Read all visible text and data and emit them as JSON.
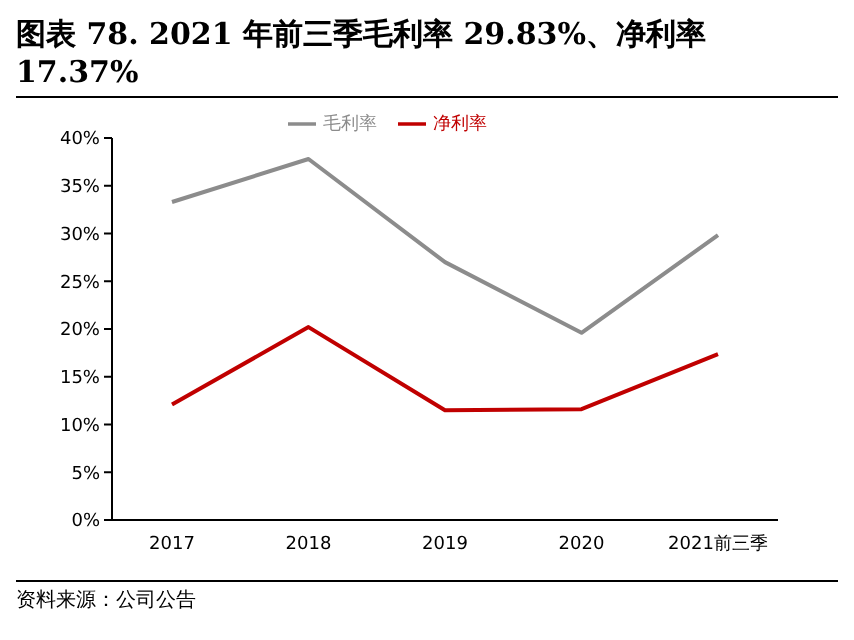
{
  "chart_data": {
    "type": "line",
    "title": "图表 78. 2021 年前三季毛利率 29.83%、净利率 17.37%",
    "categories": [
      "2017",
      "2018",
      "2019",
      "2020",
      "2021前三季"
    ],
    "series": [
      {
        "name": "毛利率",
        "color": "#8c8c8c",
        "values": [
          33.3,
          37.8,
          27.0,
          19.6,
          29.83
        ]
      },
      {
        "name": "净利率",
        "color": "#c00000",
        "values": [
          12.1,
          20.2,
          11.5,
          11.6,
          17.37
        ]
      }
    ],
    "ylim": [
      0,
      40
    ],
    "yticks": [
      {
        "value": 0,
        "label": "0%"
      },
      {
        "value": 5,
        "label": "5%"
      },
      {
        "value": 10,
        "label": "10%"
      },
      {
        "value": 15,
        "label": "15%"
      },
      {
        "value": 20,
        "label": "20%"
      },
      {
        "value": 25,
        "label": "25%"
      },
      {
        "value": 30,
        "label": "30%"
      },
      {
        "value": 35,
        "label": "35%"
      },
      {
        "value": 40,
        "label": "40%"
      }
    ],
    "grid": false,
    "legend": "top",
    "marker": "none",
    "line_style": "solid",
    "annotations": [
      "资料来源：公司公告"
    ]
  }
}
